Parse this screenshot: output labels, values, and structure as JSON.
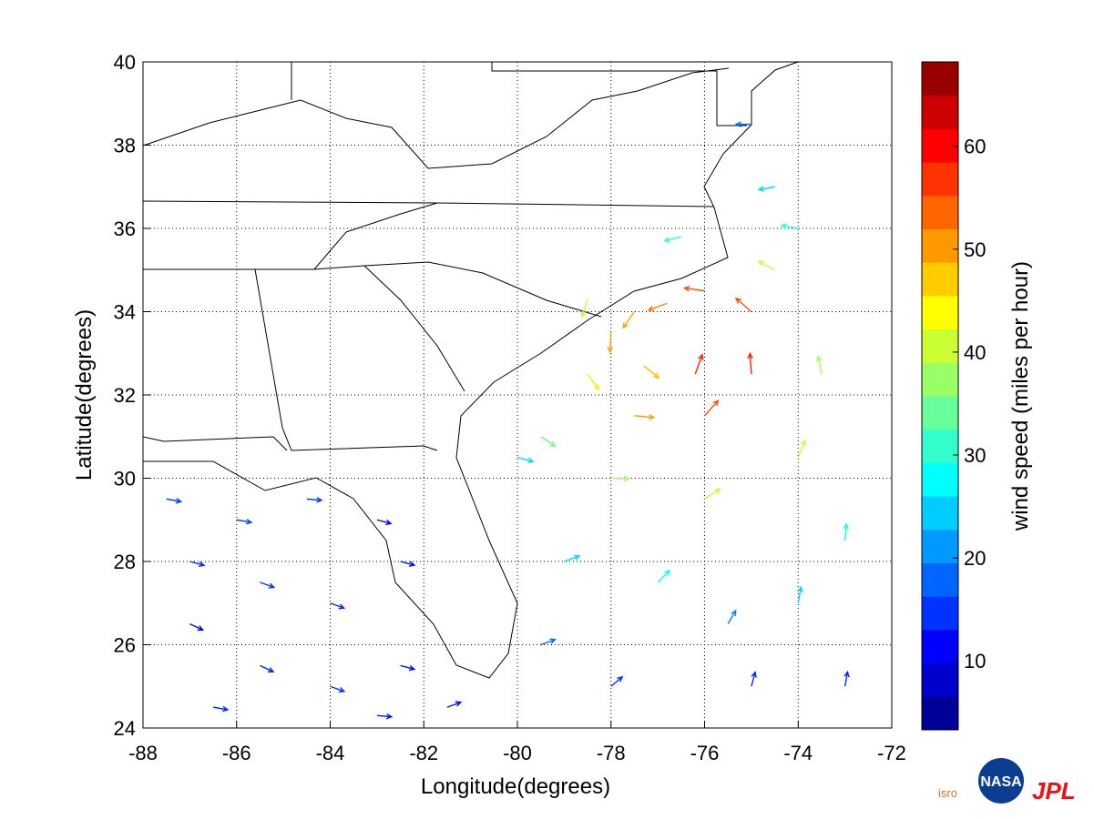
{
  "chart_data": {
    "type": "quiver",
    "x_label": "Longitude(degrees)",
    "y_label": "Latitude(degrees)",
    "xlim": [
      -88,
      -72
    ],
    "ylim": [
      24,
      40
    ],
    "xticks": [
      -88,
      -86,
      -84,
      -82,
      -80,
      -78,
      -76,
      -74,
      -72
    ],
    "yticks": [
      24,
      26,
      28,
      30,
      32,
      34,
      36,
      38,
      40
    ],
    "grid": true,
    "colorbar": {
      "label": "wind speed (miles per hour)",
      "lim": [
        3.3,
        68.2
      ],
      "ticks": [
        10,
        20,
        30,
        40,
        50,
        60
      ],
      "levels": 20,
      "colormap": "jet"
    },
    "vectors": {
      "lon": [
        -76,
        -77.5,
        -78.5,
        -77.5,
        -76,
        -75,
        -75,
        -76.8,
        -78,
        -76.2,
        -77.3,
        -79.5,
        -78,
        -76,
        -74,
        -73.5,
        -74.5,
        -76.5,
        -78.5,
        -74,
        -73,
        -75.5,
        -77,
        -79,
        -80,
        -79.5,
        -78,
        -74.5,
        -75,
        -74,
        -73,
        -75,
        -87.5,
        -86,
        -84.5,
        -83,
        -87,
        -85.5,
        -84,
        -82.5,
        -87,
        -85.5,
        -84,
        -82.5,
        -86.5,
        -81.5,
        -83
      ],
      "lat": [
        34.5,
        34,
        32.5,
        31.5,
        31.5,
        32.5,
        34,
        34.2,
        33.5,
        32.5,
        32.7,
        31,
        30,
        29.5,
        30.5,
        32.5,
        35,
        35.8,
        34.3,
        27,
        28.5,
        26.5,
        27.5,
        28,
        30.5,
        26,
        25,
        37,
        38.5,
        36,
        25,
        25,
        29.5,
        29,
        29.5,
        29,
        28,
        27.5,
        27,
        28,
        26.5,
        25.5,
        25,
        25.5,
        24.5,
        24.5,
        24.3
      ],
      "direction": [
        172,
        235,
        306,
        355,
        48,
        94,
        139,
        200,
        267,
        70,
        321,
        326,
        358,
        33,
        68,
        101,
        151,
        194,
        253,
        80,
        85,
        60,
        45,
        20,
        345,
        20,
        40,
        190,
        180,
        170,
        80,
        75,
        350,
        350,
        355,
        345,
        345,
        340,
        340,
        345,
        335,
        335,
        340,
        345,
        350,
        20,
        355
      ],
      "speed": [
        55,
        50,
        45,
        50,
        55,
        58,
        55,
        52,
        50,
        58,
        48,
        35,
        38,
        40,
        40,
        38,
        40,
        30,
        40,
        25,
        28,
        20,
        28,
        25,
        25,
        18,
        15,
        25,
        18,
        30,
        14,
        14,
        15,
        16,
        15,
        12,
        14,
        15,
        14,
        12,
        12,
        14,
        15,
        12,
        14,
        12,
        13
      ]
    }
  },
  "logos": {
    "isro": "isro",
    "nasa": "NASA",
    "jpl": "JPL"
  }
}
